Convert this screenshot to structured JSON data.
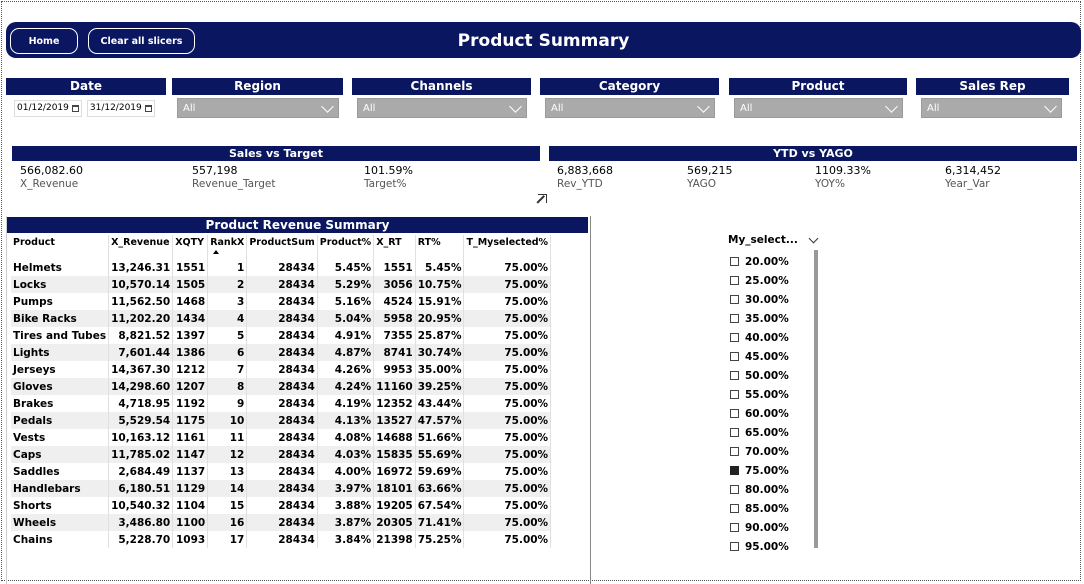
{
  "header": {
    "title": "Product Summary",
    "home_label": "Home",
    "clear_label": "Clear all slicers"
  },
  "filters": {
    "date": {
      "label": "Date",
      "from": "01/12/2019",
      "to": "31/12/2019"
    },
    "region": {
      "label": "Region",
      "value": "All"
    },
    "channels": {
      "label": "Channels",
      "value": "All"
    },
    "category": {
      "label": "Category",
      "value": "All"
    },
    "product": {
      "label": "Product",
      "value": "All"
    },
    "sales_rep": {
      "label": "Sales Rep",
      "value": "All"
    }
  },
  "kpi_sales": {
    "title": "Sales vs Target",
    "items": [
      {
        "value": "566,082.60",
        "label": "X_Revenue"
      },
      {
        "value": "557,198",
        "label": "Revenue_Target"
      },
      {
        "value": "101.59%",
        "label": "Target%"
      }
    ]
  },
  "kpi_ytd": {
    "title": "YTD vs YAGO",
    "items": [
      {
        "value": "6,883,668",
        "label": "Rev_YTD"
      },
      {
        "value": "569,215",
        "label": "YAGO"
      },
      {
        "value": "1109.33%",
        "label": "YOY%"
      },
      {
        "value": "6,314,452",
        "label": "Year_Var"
      }
    ]
  },
  "table": {
    "title": "Product Revenue Summary",
    "columns": [
      "Product",
      "X_Revenue",
      "XQTY",
      "RankX",
      "ProductSum",
      "Product%",
      "X_RT",
      "RT%",
      "T_Myselected%"
    ],
    "rows": [
      [
        "Helmets",
        "13,246.31",
        "1551",
        "1",
        "28434",
        "5.45%",
        "1551",
        "5.45%",
        "75.00%"
      ],
      [
        "Locks",
        "10,570.14",
        "1505",
        "2",
        "28434",
        "5.29%",
        "3056",
        "10.75%",
        "75.00%"
      ],
      [
        "Pumps",
        "11,562.50",
        "1468",
        "3",
        "28434",
        "5.16%",
        "4524",
        "15.91%",
        "75.00%"
      ],
      [
        "Bike Racks",
        "11,202.20",
        "1434",
        "4",
        "28434",
        "5.04%",
        "5958",
        "20.95%",
        "75.00%"
      ],
      [
        "Tires and Tubes",
        "8,821.52",
        "1397",
        "5",
        "28434",
        "4.91%",
        "7355",
        "25.87%",
        "75.00%"
      ],
      [
        "Lights",
        "7,601.44",
        "1386",
        "6",
        "28434",
        "4.87%",
        "8741",
        "30.74%",
        "75.00%"
      ],
      [
        "Jerseys",
        "14,367.30",
        "1212",
        "7",
        "28434",
        "4.26%",
        "9953",
        "35.00%",
        "75.00%"
      ],
      [
        "Gloves",
        "14,298.60",
        "1207",
        "8",
        "28434",
        "4.24%",
        "11160",
        "39.25%",
        "75.00%"
      ],
      [
        "Brakes",
        "4,718.95",
        "1192",
        "9",
        "28434",
        "4.19%",
        "12352",
        "43.44%",
        "75.00%"
      ],
      [
        "Pedals",
        "5,529.54",
        "1175",
        "10",
        "28434",
        "4.13%",
        "13527",
        "47.57%",
        "75.00%"
      ],
      [
        "Vests",
        "10,163.12",
        "1161",
        "11",
        "28434",
        "4.08%",
        "14688",
        "51.66%",
        "75.00%"
      ],
      [
        "Caps",
        "11,785.02",
        "1147",
        "12",
        "28434",
        "4.03%",
        "15835",
        "55.69%",
        "75.00%"
      ],
      [
        "Saddles",
        "2,684.49",
        "1137",
        "13",
        "28434",
        "4.00%",
        "16972",
        "59.69%",
        "75.00%"
      ],
      [
        "Handlebars",
        "6,180.51",
        "1129",
        "14",
        "28434",
        "3.97%",
        "18101",
        "63.66%",
        "75.00%"
      ],
      [
        "Shorts",
        "10,540.32",
        "1104",
        "15",
        "28434",
        "3.88%",
        "19205",
        "67.54%",
        "75.00%"
      ],
      [
        "Wheels",
        "3,486.80",
        "1100",
        "16",
        "28434",
        "3.87%",
        "20305",
        "71.41%",
        "75.00%"
      ],
      [
        "Chains",
        "5,228.70",
        "1093",
        "17",
        "28434",
        "3.84%",
        "21398",
        "75.25%",
        "75.00%"
      ]
    ]
  },
  "slicer": {
    "title": "My_select...",
    "selected": "75.00%",
    "options": [
      "20.00%",
      "25.00%",
      "30.00%",
      "35.00%",
      "40.00%",
      "45.00%",
      "50.00%",
      "55.00%",
      "60.00%",
      "65.00%",
      "70.00%",
      "75.00%",
      "80.00%",
      "85.00%",
      "90.00%",
      "95.00%"
    ]
  },
  "colors": {
    "navy": "#0a1660",
    "dropdown_gray": "#aaaaaa"
  }
}
